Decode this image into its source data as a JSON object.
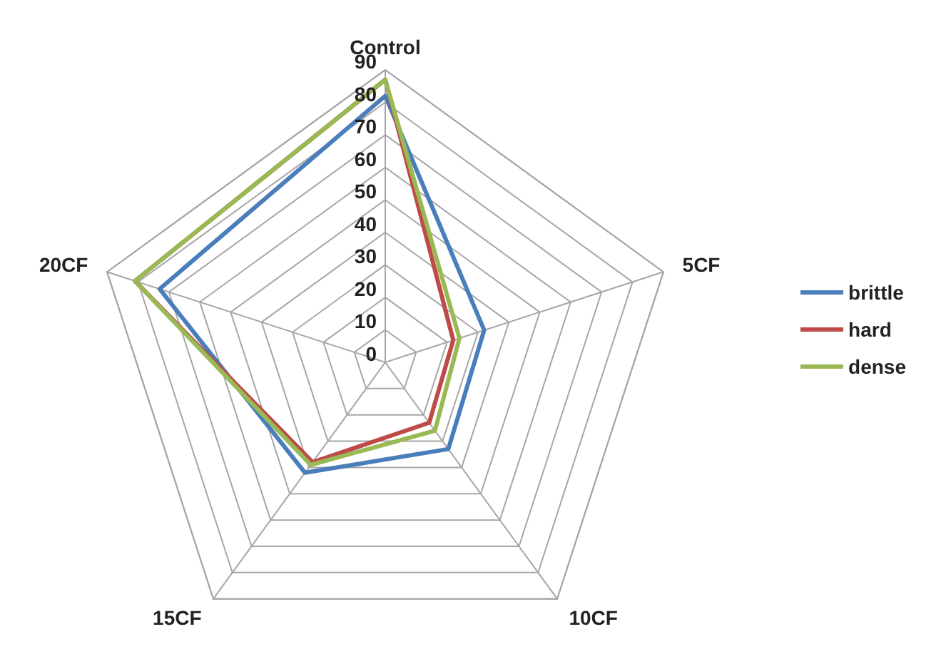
{
  "chart_data": {
    "type": "radar",
    "categories": [
      "Control",
      "5CF",
      "10CF",
      "15CF",
      "20CF"
    ],
    "series": [
      {
        "name": "brittle",
        "color": "#4a7ebb",
        "values": [
          82,
          32,
          33,
          42,
          73
        ]
      },
      {
        "name": "hard",
        "color": "#be4b48",
        "values": [
          87,
          22,
          23,
          38,
          81
        ]
      },
      {
        "name": "dense",
        "color": "#98b954",
        "values": [
          87,
          24,
          26,
          39,
          81
        ]
      }
    ],
    "ylim": [
      0,
      90
    ],
    "yticks": [
      0,
      10,
      20,
      30,
      40,
      50,
      60,
      70,
      80,
      90
    ],
    "grid": true,
    "legend": "right",
    "marker": "none"
  }
}
